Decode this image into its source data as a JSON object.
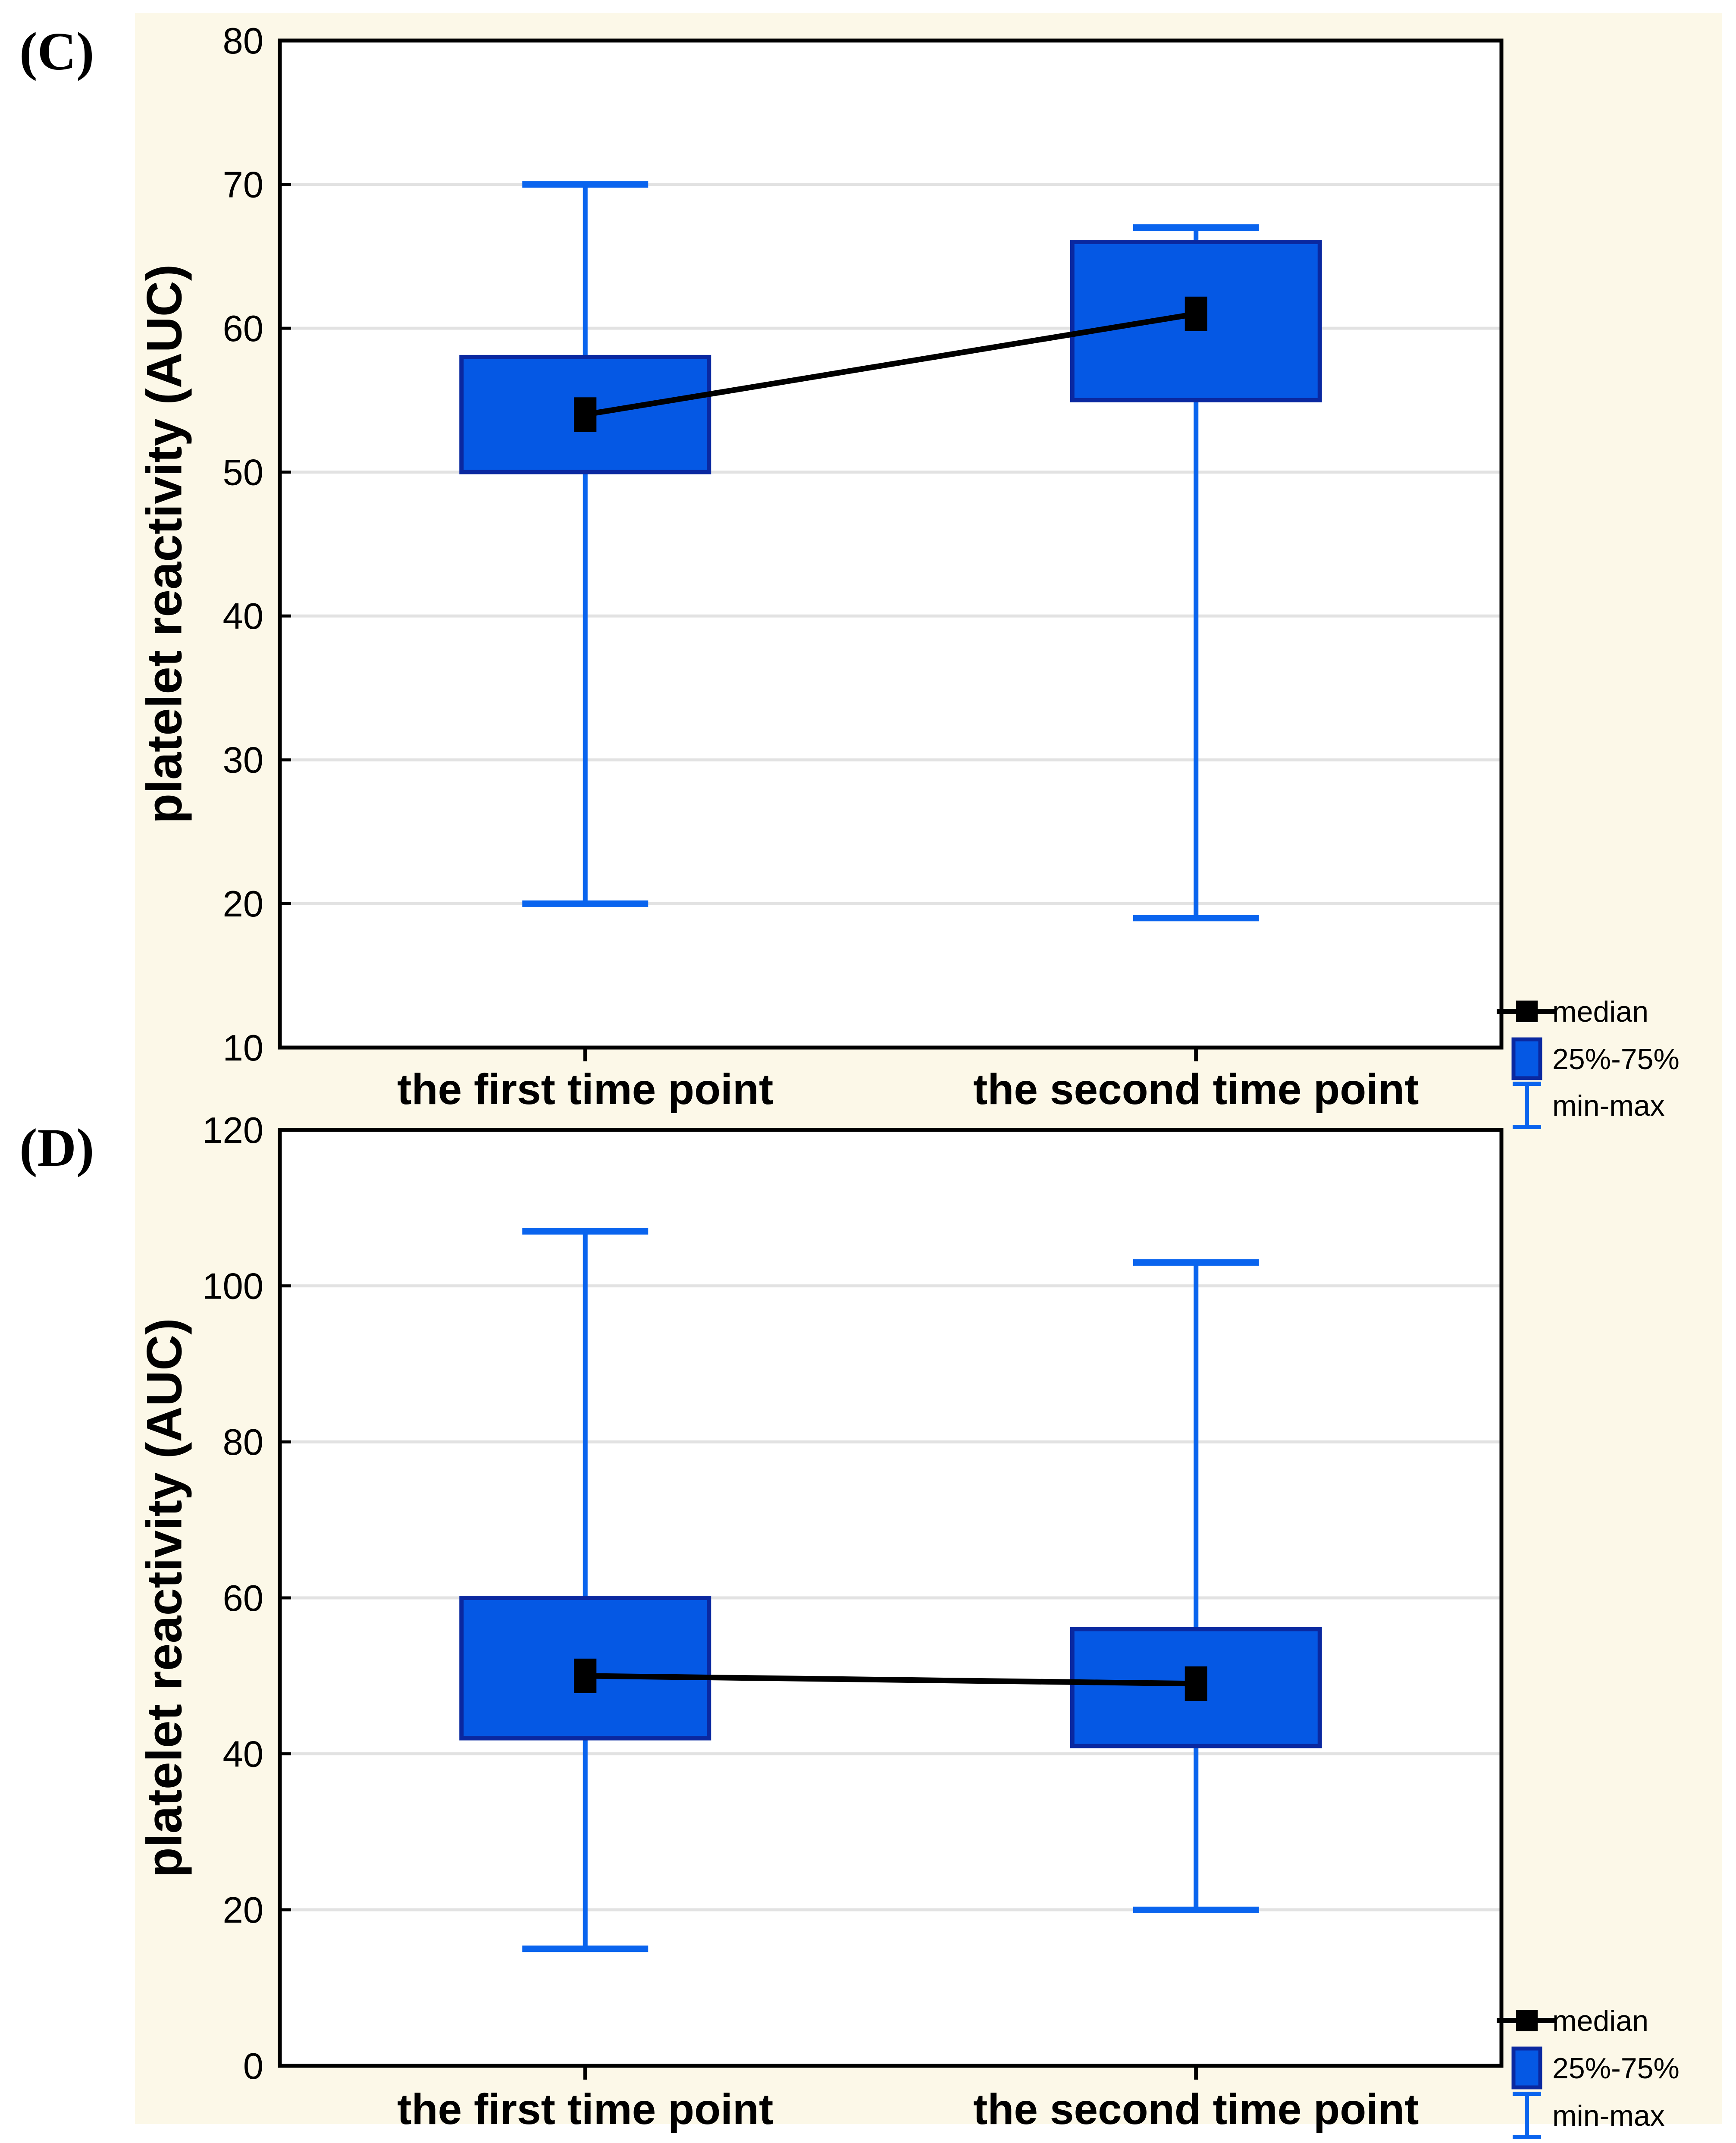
{
  "figure": {
    "background_color": "#FCF8E8",
    "page_color": "#ffffff",
    "panel_labels": [
      "(C)",
      "(D)"
    ]
  },
  "colors": {
    "box_fill": "#0558E4",
    "box_border": "#0A28A0",
    "whisker": "#0A64EE",
    "median_marker": "#000000",
    "connector_line": "#000000",
    "gridline": "#E2E2E2",
    "axis": "#000000",
    "plot_background": "#ffffff"
  },
  "chart_data": [
    {
      "panel_label": "(C)",
      "type": "boxplot",
      "ylabel": "platelet reactivity (AUC)",
      "xlabel": "",
      "ylim": [
        10,
        80
      ],
      "yticks": [
        10,
        20,
        30,
        40,
        50,
        60,
        70,
        80
      ],
      "grid": true,
      "categories": [
        "the first time point",
        "the second time point"
      ],
      "series": [
        {
          "category": "the first time point",
          "min": 20,
          "q1": 50,
          "median": 54,
          "q3": 58,
          "max": 70
        },
        {
          "category": "the second time point",
          "min": 19,
          "q1": 55,
          "median": 61,
          "q3": 66,
          "max": 67
        }
      ],
      "connector": "line joins the two median markers",
      "legend_position": "bottom-right-outside",
      "legend": [
        {
          "symbol": "median-marker",
          "label": "median"
        },
        {
          "symbol": "box",
          "label": "25%-75%"
        },
        {
          "symbol": "whisker",
          "label": "min-max"
        }
      ]
    },
    {
      "panel_label": "(D)",
      "type": "boxplot",
      "ylabel": "platelet reactivity (AUC)",
      "xlabel": "",
      "ylim": [
        0,
        120
      ],
      "yticks": [
        0,
        20,
        40,
        60,
        80,
        100,
        120
      ],
      "grid": true,
      "categories": [
        "the first time point",
        "the second time point"
      ],
      "series": [
        {
          "category": "the first time point",
          "min": 15,
          "q1": 42,
          "median": 50,
          "q3": 60,
          "max": 107
        },
        {
          "category": "the second time point",
          "min": 20,
          "q1": 41,
          "median": 49,
          "q3": 56,
          "max": 103
        }
      ],
      "connector": "line joins the two median markers",
      "legend_position": "bottom-right-outside",
      "legend": [
        {
          "symbol": "median-marker",
          "label": "median"
        },
        {
          "symbol": "box",
          "label": "25%-75%"
        },
        {
          "symbol": "whisker",
          "label": "min-max"
        }
      ]
    }
  ]
}
